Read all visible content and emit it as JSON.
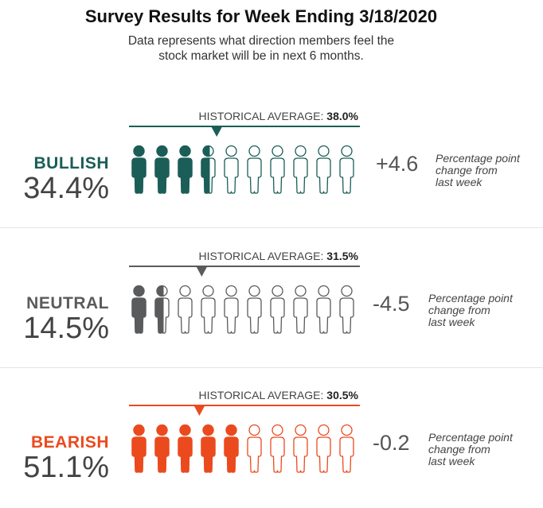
{
  "title": "Survey Results for Week Ending 3/18/2020",
  "subtitle_line1": "Data represents what direction members feel the",
  "subtitle_line2": "stock market will be in next 6 months.",
  "historical_average_label": "HISTORICAL AVERAGE:",
  "change_note_lines": [
    "Percentage point",
    "change from",
    "last week"
  ],
  "chart_data": {
    "type": "bar",
    "categories": [
      "BULLISH",
      "NEUTRAL",
      "BEARISH"
    ],
    "max_icons": 10,
    "rows": [
      {
        "label": "BULLISH",
        "value": 34.4,
        "value_text": "34.4%",
        "historical_average": 38.0,
        "historical_average_text": "38.0%",
        "change": 4.6,
        "change_text": "+4.6",
        "color": "#1b5e57",
        "icon_fill_count": 3.5
      },
      {
        "label": "NEUTRAL",
        "value": 14.5,
        "value_text": "14.5%",
        "historical_average": 31.5,
        "historical_average_text": "31.5%",
        "change": -4.5,
        "change_text": "-4.5",
        "color": "#5a5b5c",
        "icon_fill_count": 1.5
      },
      {
        "label": "BEARISH",
        "value": 51.1,
        "value_text": "51.1%",
        "historical_average": 30.5,
        "historical_average_text": "30.5%",
        "change": -0.2,
        "change_text": "-0.2",
        "color": "#eb4a1e",
        "icon_fill_count": 5
      }
    ]
  }
}
